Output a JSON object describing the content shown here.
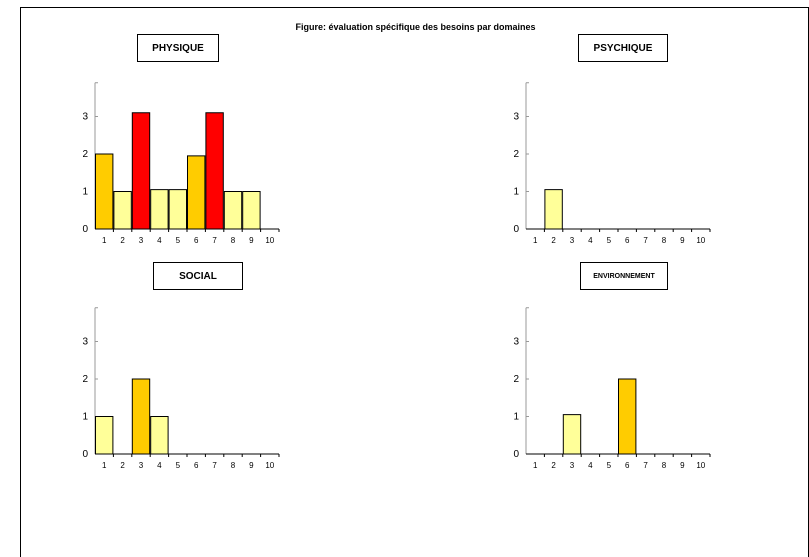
{
  "figure_title": "Figure: évaluation spécifique des besoins par domaines",
  "colors": {
    "light": "#ffff99",
    "medium": "#ffcc00",
    "high": "#ff0000"
  },
  "chart_data": [
    {
      "type": "bar",
      "title": "PHYSIQUE",
      "categories": [
        "1",
        "2",
        "3",
        "4",
        "5",
        "6",
        "7",
        "8",
        "9",
        "10"
      ],
      "values": [
        2,
        1,
        3.1,
        1.05,
        1.05,
        1.95,
        3.1,
        1,
        1,
        0
      ],
      "yticks": [
        "0",
        "1",
        "2",
        "3"
      ],
      "ylim": [
        0,
        3.9
      ]
    },
    {
      "type": "bar",
      "title": "PSYCHIQUE",
      "categories": [
        "1",
        "2",
        "3",
        "4",
        "5",
        "6",
        "7",
        "8",
        "9",
        "10"
      ],
      "values": [
        0,
        1.05,
        0,
        0,
        0,
        0,
        0,
        0,
        0,
        0
      ],
      "yticks": [
        "0",
        "1",
        "2",
        "3"
      ],
      "ylim": [
        0,
        3.9
      ]
    },
    {
      "type": "bar",
      "title": "SOCIAL",
      "categories": [
        "1",
        "2",
        "3",
        "4",
        "5",
        "6",
        "7",
        "8",
        "9",
        "10"
      ],
      "values": [
        1,
        0,
        2,
        1,
        0,
        0,
        0,
        0,
        0,
        0
      ],
      "yticks": [
        "0",
        "1",
        "2",
        "3"
      ],
      "ylim": [
        0,
        3.9
      ]
    },
    {
      "type": "bar",
      "title": "ENVIRONNEMENT",
      "categories": [
        "1",
        "2",
        "3",
        "4",
        "5",
        "6",
        "7",
        "8",
        "9",
        "10"
      ],
      "values": [
        0,
        0,
        1.05,
        0,
        0,
        2,
        0,
        0,
        0,
        0
      ],
      "yticks": [
        "0",
        "1",
        "2",
        "3"
      ],
      "ylim": [
        0,
        3.9
      ]
    }
  ]
}
